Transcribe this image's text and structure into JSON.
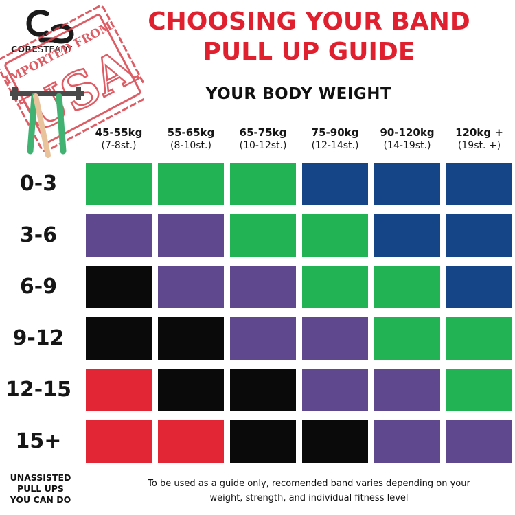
{
  "brand": {
    "logo_bold": "CORE",
    "logo_rest": "STEADY",
    "stamp_arc": "IMPORTED FROM",
    "stamp_big": "USA"
  },
  "title": {
    "line1": "CHOOSING YOUR BAND",
    "line2": "PULL UP GUIDE"
  },
  "subtitle": "YOUR BODY WEIGHT",
  "columns": [
    {
      "kg": "45-55kg",
      "st": "(7-8st.)"
    },
    {
      "kg": "55-65kg",
      "st": "(8-10st.)"
    },
    {
      "kg": "65-75kg",
      "st": "(10-12st.)"
    },
    {
      "kg": "75-90kg",
      "st": "(12-14st.)"
    },
    {
      "kg": "90-120kg",
      "st": "(14-19st.)"
    },
    {
      "kg": "120kg +",
      "st": "(19st. +)"
    }
  ],
  "rows": [
    "0-3",
    "3-6",
    "6-9",
    "9-12",
    "12-15",
    "15+"
  ],
  "band_colors": {
    "red": "#e32636",
    "black": "#0a0a0a",
    "purple": "#60488e",
    "green": "#22b355",
    "blue": "#154587"
  },
  "grid": [
    [
      "green",
      "green",
      "green",
      "blue",
      "blue",
      "blue"
    ],
    [
      "purple",
      "purple",
      "green",
      "green",
      "blue",
      "blue"
    ],
    [
      "black",
      "purple",
      "purple",
      "green",
      "green",
      "blue"
    ],
    [
      "black",
      "black",
      "purple",
      "purple",
      "green",
      "green"
    ],
    [
      "red",
      "black",
      "black",
      "purple",
      "purple",
      "green"
    ],
    [
      "red",
      "red",
      "black",
      "black",
      "purple",
      "purple"
    ]
  ],
  "footer": {
    "left_line1": "UNASSISTED",
    "left_line2": "PULL UPS",
    "left_line3": "YOU CAN DO",
    "note_line1": "To be used as a guide only, recomended band varies depending on your",
    "note_line2": "weight, strength, and individual fitness level"
  }
}
